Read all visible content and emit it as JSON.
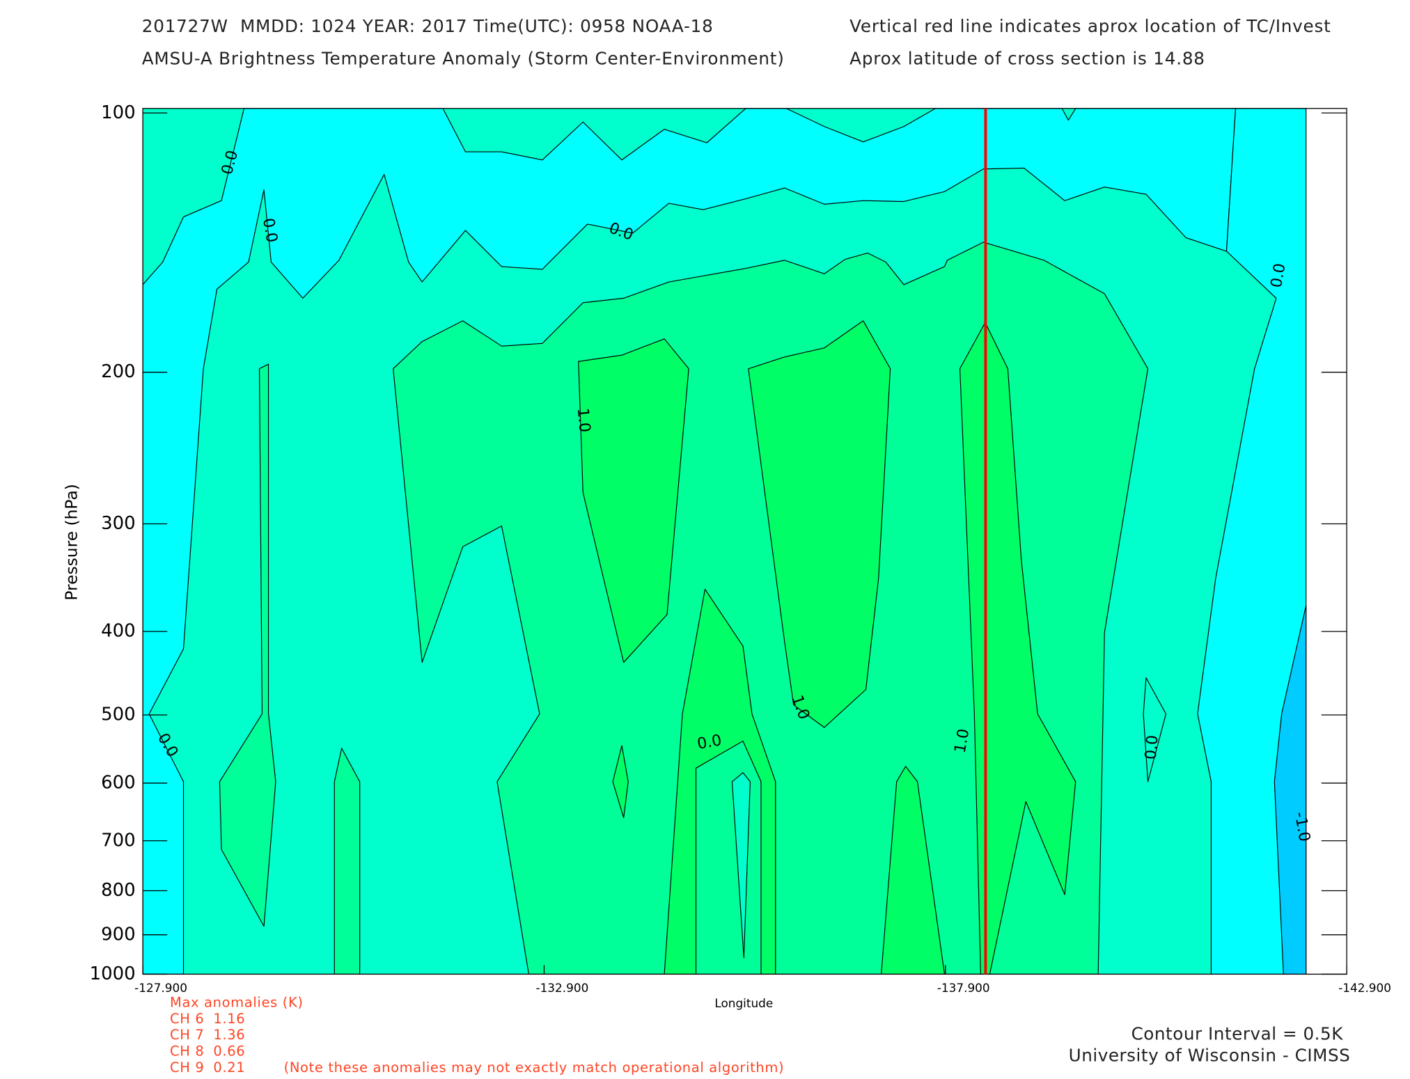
{
  "chart_data": {
    "type": "contour",
    "title": "201727W  MMDD: 1024 YEAR: 2017 Time(UTC): 0958 NOAA-18",
    "annotation": "Vertical red line indicates aprox location of TC/Invest",
    "subtitle": "AMSU-A Brightness Temperature Anomaly (Storm Center-Environment)",
    "latitude_note": "Aprox latitude of cross section is 14.88",
    "x_label": "Longitude",
    "y_label": "Pressure (hPa)",
    "xlim": [
      -127.9,
      -142.9
    ],
    "xticks": [
      {
        "value": -127.9,
        "label": "-127.900"
      },
      {
        "value": -132.9,
        "label": "-132.900"
      },
      {
        "value": -137.9,
        "label": "-137.900"
      },
      {
        "value": -142.9,
        "label": "-142.900"
      }
    ],
    "ylim": [
      1000,
      100
    ],
    "yticks": [
      100,
      200,
      300,
      400,
      500,
      600,
      700,
      800,
      900,
      1000
    ],
    "y_scale": "log",
    "tc_line": {
      "x": -138.4,
      "color": "#ff0000"
    },
    "contour_labels": [
      "0.0",
      "0.0",
      "0.0",
      "0.0",
      "0.0",
      "1.0",
      "1.0",
      "1.0",
      "0.0",
      "0.0",
      "-1.0"
    ]
  },
  "max_anomalies": {
    "title": "Max anomalies (K)",
    "channels": [
      {
        "label": "CH 6",
        "value": 1.16
      },
      {
        "label": "CH 7",
        "value": 1.36
      },
      {
        "label": "CH 8",
        "value": 0.66
      },
      {
        "label": "CH 9",
        "value": 0.21
      }
    ],
    "note": "(Note these anomalies may not exactly match operational algorithm)"
  },
  "footer": {
    "contour_interval": "Contour Interval = 0.5K",
    "credit": "University of Wisconsin - CIMSS"
  }
}
